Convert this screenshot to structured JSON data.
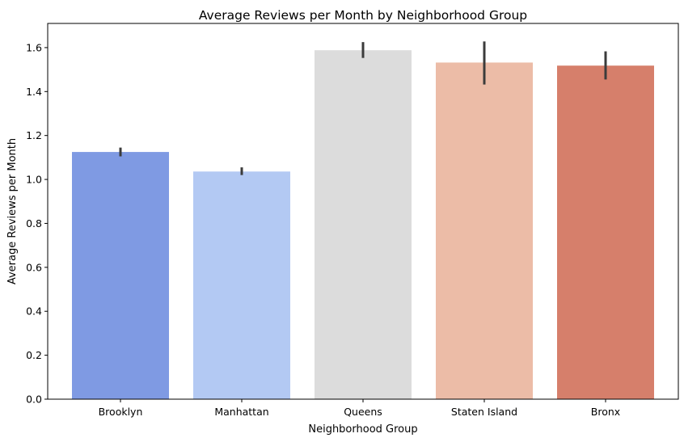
{
  "chart_data": {
    "type": "bar",
    "title": "Average Reviews per Month by Neighborhood Group",
    "xlabel": "Neighborhood Group",
    "ylabel": "Average Reviews per Month",
    "categories": [
      "Brooklyn",
      "Manhattan",
      "Queens",
      "Staten Island",
      "Bronx"
    ],
    "values": [
      1.125,
      1.036,
      1.588,
      1.532,
      1.518
    ],
    "error_low": [
      1.105,
      1.02,
      1.553,
      1.432,
      1.455
    ],
    "error_high": [
      1.145,
      1.055,
      1.625,
      1.628,
      1.583
    ],
    "colors": [
      "#7f9ae3",
      "#b3c9f3",
      "#dcdcdc",
      "#ecbca7",
      "#d67f6b"
    ],
    "error_color": "#3b3b3b",
    "ylim": [
      0,
      1.71
    ],
    "yticks": [
      0.0,
      0.2,
      0.4,
      0.6,
      0.8,
      1.0,
      1.2,
      1.4,
      1.6
    ],
    "ytick_labels": [
      "0.0",
      "0.2",
      "0.4",
      "0.6",
      "0.8",
      "1.0",
      "1.2",
      "1.4",
      "1.6"
    ],
    "grid": false,
    "legend": "none"
  }
}
